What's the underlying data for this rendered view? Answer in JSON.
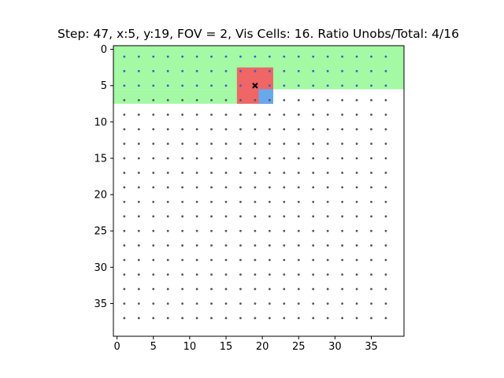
{
  "chart_data": {
    "type": "heatmap",
    "title": "Step: 47, x:5, y:19, FOV = 2, Vis Cells: 16. Ratio Unobs/Total: 4/16",
    "xlabel": "",
    "ylabel": "",
    "xlim": [
      -0.5,
      39.5
    ],
    "ylim": [
      39.5,
      -0.5
    ],
    "y_axis_inverted": true,
    "xticks": [
      0,
      5,
      10,
      15,
      20,
      25,
      30,
      35
    ],
    "yticks": [
      0,
      5,
      10,
      15,
      20,
      25,
      30,
      35
    ],
    "grid": false,
    "colors": {
      "observed": "#a4f9a4",
      "fov_window": "#ee6666",
      "unobserved_in_fov": "#66aaee",
      "marker": "#000000",
      "dot_observed": "#3b5cc8",
      "dot_unobserved": "#555555"
    },
    "observed_regions": [
      {
        "x_range": [
          0,
          39
        ],
        "y_range": [
          0,
          5
        ]
      },
      {
        "x_range": [
          0,
          17
        ],
        "y_range": [
          6,
          7
        ]
      }
    ],
    "fov_window": {
      "x_range": [
        17,
        21
      ],
      "y_range": [
        3,
        7
      ]
    },
    "unobserved_in_fov": [
      {
        "x": 20,
        "y": 6
      },
      {
        "x": 20,
        "y": 7
      },
      {
        "x": 21,
        "y": 6
      },
      {
        "x": 21,
        "y": 7
      }
    ],
    "agent": {
      "x": 19,
      "y": 5,
      "marker": "x"
    },
    "waypoints": {
      "x": [
        1,
        3,
        5,
        7,
        9,
        11,
        13,
        15,
        17,
        19,
        21,
        23,
        25,
        27,
        29,
        31,
        33,
        35,
        37
      ],
      "y": [
        1,
        3,
        5,
        7,
        9,
        11,
        13,
        15,
        17,
        19,
        21,
        23,
        25,
        27,
        29,
        31,
        33,
        35,
        37
      ],
      "observed_rows": [
        1,
        3,
        5
      ]
    }
  }
}
